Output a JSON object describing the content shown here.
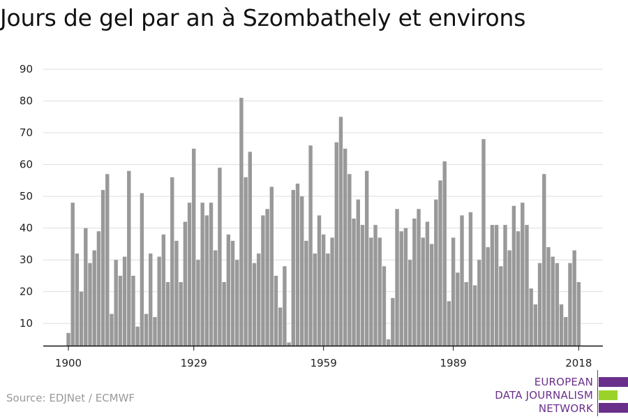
{
  "title": "Jours de gel par an à Szombathely et environs",
  "source": "Source: EDJNet / ECMWF",
  "logo": {
    "lines": [
      "EUROPEAN",
      "DATA JOURNALISM",
      "NETWORK"
    ],
    "colors": {
      "purple": "#6a2f8a",
      "green": "#9bd32b"
    }
  },
  "colors": {
    "bar": "#999999",
    "grid": "#dddddd",
    "axis": "#111111",
    "text": "#222222"
  },
  "chart_data": {
    "type": "bar",
    "title": "Jours de gel par an à Szombathely et environs",
    "xlabel": "",
    "ylabel": "",
    "ylim": [
      3,
      92
    ],
    "yticks": [
      10,
      20,
      30,
      40,
      50,
      60,
      70,
      80,
      90
    ],
    "xticks": [
      1900,
      1929,
      1959,
      1989,
      2018
    ],
    "grid": true,
    "x_start": 1900,
    "categories": [
      1900,
      1901,
      1902,
      1903,
      1904,
      1905,
      1906,
      1907,
      1908,
      1909,
      1910,
      1911,
      1912,
      1913,
      1914,
      1915,
      1916,
      1917,
      1918,
      1919,
      1920,
      1921,
      1922,
      1923,
      1924,
      1925,
      1926,
      1927,
      1928,
      1929,
      1930,
      1931,
      1932,
      1933,
      1934,
      1935,
      1936,
      1937,
      1938,
      1939,
      1940,
      1941,
      1942,
      1943,
      1944,
      1945,
      1946,
      1947,
      1948,
      1949,
      1950,
      1951,
      1952,
      1953,
      1954,
      1955,
      1956,
      1957,
      1958,
      1959,
      1960,
      1961,
      1962,
      1963,
      1964,
      1965,
      1966,
      1967,
      1968,
      1969,
      1970,
      1971,
      1972,
      1973,
      1974,
      1975,
      1976,
      1977,
      1978,
      1979,
      1980,
      1981,
      1982,
      1983,
      1984,
      1985,
      1986,
      1987,
      1988,
      1989,
      1990,
      1991,
      1992,
      1993,
      1994,
      1995,
      1996,
      1997,
      1998,
      1999,
      2000,
      2001,
      2002,
      2003,
      2004,
      2005,
      2006,
      2007,
      2008,
      2009,
      2010,
      2011,
      2012,
      2013,
      2014,
      2015,
      2016,
      2017,
      2018
    ],
    "values": [
      7,
      48,
      32,
      20,
      40,
      29,
      33,
      39,
      52,
      57,
      13,
      30,
      25,
      31,
      58,
      25,
      9,
      51,
      13,
      32,
      12,
      31,
      38,
      23,
      56,
      36,
      23,
      42,
      48,
      65,
      30,
      48,
      44,
      48,
      33,
      59,
      23,
      38,
      36,
      30,
      81,
      56,
      64,
      29,
      32,
      44,
      46,
      53,
      25,
      15,
      28,
      4,
      52,
      54,
      50,
      36,
      66,
      32,
      44,
      38,
      32,
      37,
      67,
      75,
      65,
      57,
      43,
      49,
      41,
      58,
      37,
      41,
      37,
      28,
      5,
      18,
      46,
      39,
      40,
      30,
      43,
      46,
      37,
      42,
      35,
      49,
      55,
      61,
      17,
      37,
      26,
      44,
      23,
      45,
      22,
      30,
      68,
      34,
      41,
      41,
      28,
      41,
      33,
      47,
      39,
      48,
      41,
      21,
      16,
      29,
      57,
      34,
      31,
      29,
      16,
      12,
      29,
      33,
      23
    ]
  }
}
